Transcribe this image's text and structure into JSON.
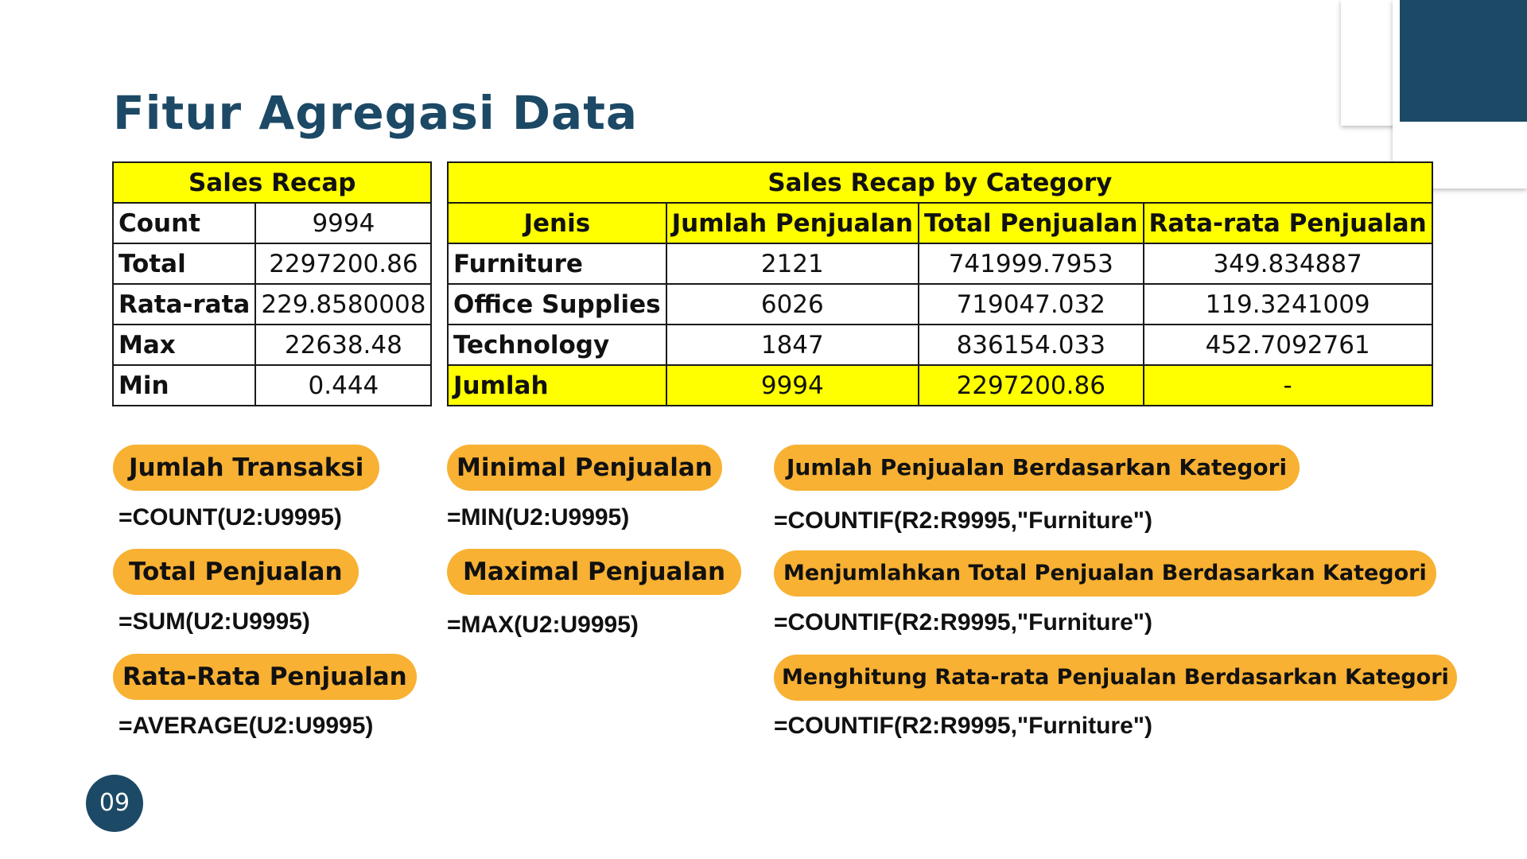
{
  "title": "Fitur Agregasi Data",
  "sales_recap": {
    "header": "Sales Recap",
    "rows": [
      {
        "label": "Count",
        "value": "9994"
      },
      {
        "label": "Total",
        "value": "2297200.86"
      },
      {
        "label": "Rata-rata",
        "value": "229.8580008"
      },
      {
        "label": "Max",
        "value": "22638.48"
      },
      {
        "label": "Min",
        "value": "0.444"
      }
    ]
  },
  "category_recap": {
    "header": "Sales Recap by Category",
    "columns": [
      "Jenis",
      "Jumlah Penjualan",
      "Total Penjualan",
      "Rata-rata Penjualan"
    ],
    "rows": [
      [
        "Furniture",
        "2121",
        "741999.7953",
        "349.834887"
      ],
      [
        "Office Supplies",
        "6026",
        "719047.032",
        "119.3241009"
      ],
      [
        "Technology",
        "1847",
        "836154.033",
        "452.7092761"
      ]
    ],
    "total_row": [
      "Jumlah",
      "9994",
      "2297200.86",
      "-"
    ]
  },
  "functions": {
    "count": {
      "label": "Jumlah Transaksi",
      "formula": "=COUNT(U2:U9995)"
    },
    "sum": {
      "label": "Total Penjualan",
      "formula": "=SUM(U2:U9995)"
    },
    "average": {
      "label": "Rata-Rata Penjualan",
      "formula": "=AVERAGE(U2:U9995)"
    },
    "min": {
      "label": "Minimal Penjualan",
      "formula": "=MIN(U2:U9995)"
    },
    "max": {
      "label": "Maximal Penjualan",
      "formula": "=MAX(U2:U9995)"
    },
    "countif": {
      "label": "Jumlah Penjualan Berdasarkan Kategori",
      "formula": "=COUNTIF(R2:R9995,\"Furniture\")"
    },
    "sumif": {
      "label": "Menjumlahkan Total Penjualan Berdasarkan Kategori",
      "formula": "=COUNTIF(R2:R9995,\"Furniture\")"
    },
    "averageif": {
      "label": "Menghitung Rata-rata Penjualan Berdasarkan Kategori",
      "formula": "=COUNTIF(R2:R9995,\"Furniture\")"
    }
  },
  "page_number": "09",
  "colors": {
    "navy": "#1c4966",
    "pill": "#f8b133",
    "highlight": "#ffff00"
  }
}
